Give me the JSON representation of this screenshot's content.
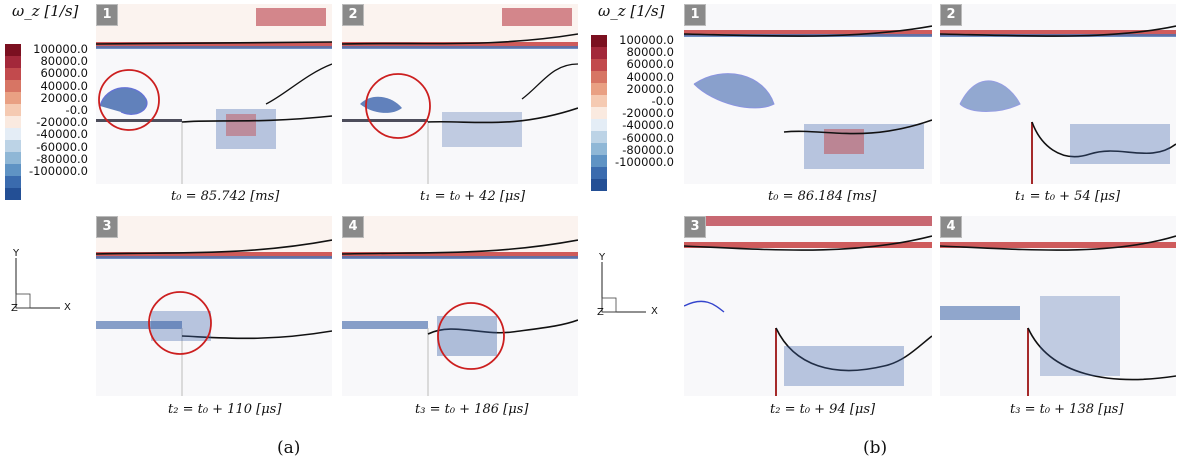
{
  "colorbar": {
    "title": "ω_z [1/s]",
    "labels": [
      "100000.0",
      "80000.0",
      "60000.0",
      "40000.0",
      "20000.0",
      "-0.0",
      "-20000.0",
      "-40000.0",
      "-60000.0",
      "-80000.0",
      "-100000.0"
    ],
    "colors": [
      "#7b1020",
      "#a3283a",
      "#c24a4d",
      "#d77564",
      "#e9a083",
      "#f5cab2",
      "#faeae0",
      "#e4edf6",
      "#bcd3e6",
      "#8fb7d6",
      "#5f93c4",
      "#3a6bae",
      "#234f95"
    ]
  },
  "axes": {
    "y": "Y",
    "x": "X",
    "z": "Z"
  },
  "sublabels": {
    "a": "(a)",
    "b": "(b)"
  },
  "panels": [
    {
      "badge": "1",
      "caption": "t₀ = 85.742 [ms]"
    },
    {
      "badge": "2",
      "caption": "t₁ = t₀ + 42 [μs]"
    },
    {
      "badge": "3",
      "caption": "t₂ = t₀ + 110 [μs]"
    },
    {
      "badge": "4",
      "caption": "t₃ = t₀ + 186 [μs]"
    },
    {
      "badge": "1",
      "caption": "t₀ = 86.184 [ms]"
    },
    {
      "badge": "2",
      "caption": "t₁ = t₀ + 54 [μs]"
    },
    {
      "badge": "3",
      "caption": "t₂ = t₀ + 94 [μs]"
    },
    {
      "badge": "4",
      "caption": "t₃ = t₀ + 138 [μs]"
    }
  ]
}
